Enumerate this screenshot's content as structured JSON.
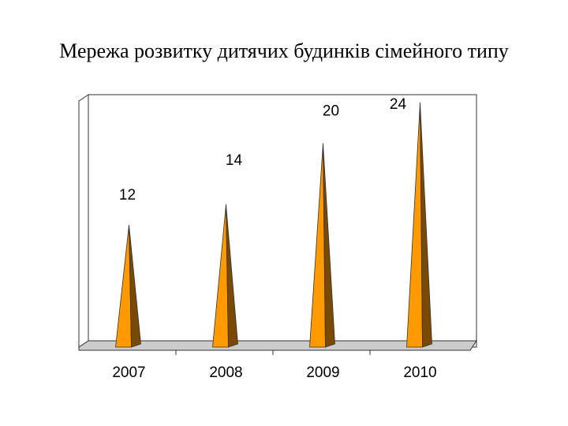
{
  "title": "Мережа розвитку дитячих будинків сімейного типу",
  "chart_data": {
    "type": "bar",
    "style": "3d-cone",
    "title": "Мережа розвитку дитячих будинків сімейного типу",
    "categories": [
      "2007",
      "2008",
      "2009",
      "2010"
    ],
    "values": [
      12,
      14,
      20,
      24
    ],
    "data_labels": [
      "12",
      "14",
      "20",
      "24"
    ],
    "ylim": [
      0,
      24
    ],
    "xlabel": "",
    "ylabel": "",
    "grid": false,
    "legend": "none",
    "colors": {
      "cone_front": "#ff9900",
      "cone_side": "#7a4a05",
      "floor": "#cccccc",
      "outline": "#333333"
    }
  }
}
